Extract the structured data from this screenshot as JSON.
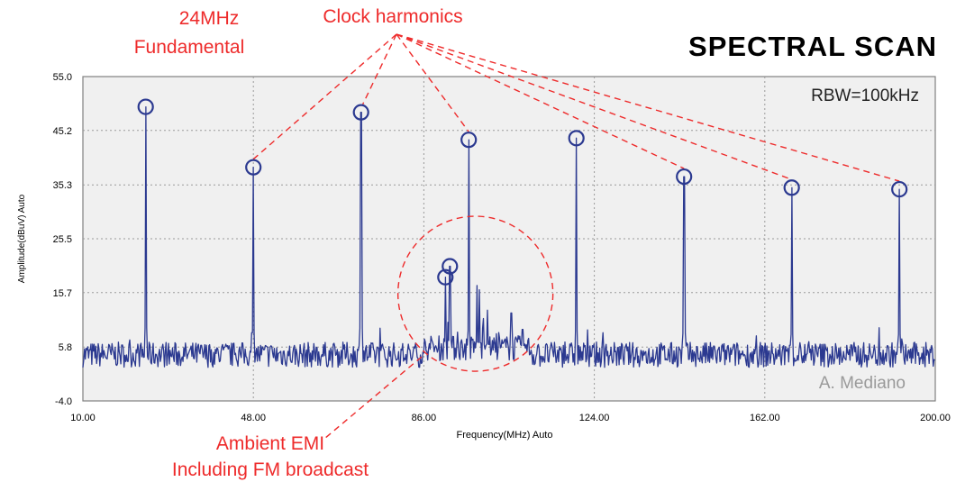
{
  "chart_data": {
    "type": "line",
    "title": "SPECTRAL SCAN",
    "xlabel": "Frequency(MHz)  Auto",
    "ylabel": "Amplitude(dBuV)  Auto",
    "xlim": [
      10,
      200
    ],
    "ylim": [
      -4,
      55
    ],
    "x_ticks": [
      "10.00",
      "48.00",
      "86.00",
      "124.00",
      "162.00",
      "200.00"
    ],
    "x_tick_values": [
      10,
      48,
      86,
      124,
      162,
      200
    ],
    "y_ticks": [
      "55.0",
      "45.2",
      "35.3",
      "25.5",
      "15.7",
      "5.8",
      "-4.0"
    ],
    "y_tick_values": [
      55.0,
      45.2,
      35.3,
      25.5,
      15.7,
      5.8,
      -4.0
    ],
    "grid": true,
    "noise_floor": 5.8,
    "series": [
      {
        "peaks": [
          {
            "x": 24.0,
            "y": 49.5
          },
          {
            "x": 48.0,
            "y": 38.5
          },
          {
            "x": 72.0,
            "y": 48.5
          },
          {
            "x": 90.8,
            "y": 18.5
          },
          {
            "x": 91.8,
            "y": 20.5
          },
          {
            "x": 96.0,
            "y": 43.5
          },
          {
            "x": 120.0,
            "y": 43.8
          },
          {
            "x": 144.0,
            "y": 36.8
          },
          {
            "x": 168.0,
            "y": 34.8
          },
          {
            "x": 192.0,
            "y": 34.5
          }
        ],
        "minor_peaks": [
          {
            "x": 93.5,
            "y": 8.5
          },
          {
            "x": 97.8,
            "y": 17.0
          },
          {
            "x": 98.4,
            "y": 16.2
          },
          {
            "x": 99.3,
            "y": 11.0
          },
          {
            "x": 100.2,
            "y": 12.5
          },
          {
            "x": 105.5,
            "y": 12.0
          },
          {
            "x": 108.0,
            "y": 9.0
          }
        ]
      }
    ],
    "colors": {
      "trace": "#2b3990",
      "annotation": "#ee2b2b",
      "grid": "#9a9a9a",
      "plot_bg": "#f0f0f0",
      "credit": "#9a9a9a"
    }
  },
  "annotations": {
    "fundamental_line1": "24MHz",
    "fundamental_line2": "Fundamental",
    "harmonics": "Clock harmonics",
    "rbw": "RBW=100kHz",
    "credit": "A. Mediano",
    "emi_line1": "Ambient EMI",
    "emi_line2": "Including FM broadcast"
  }
}
